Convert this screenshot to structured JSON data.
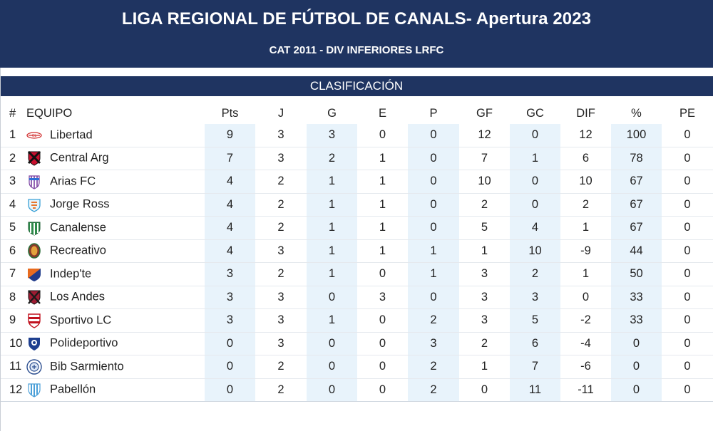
{
  "header": {
    "title": "LIGA REGIONAL DE FÚTBOL DE CANALS- Apertura 2023",
    "subtitle": "CAT 2011 - DIV INFERIORES LRFC"
  },
  "section": {
    "label": "CLASIFICACIÓN"
  },
  "table": {
    "columns": {
      "pos": "#",
      "team": "EQUIPO",
      "pts": "Pts",
      "j": "J",
      "g": "G",
      "e": "E",
      "p": "P",
      "gf": "GF",
      "gc": "GC",
      "dif": "DIF",
      "pct": "%",
      "pe": "PE"
    },
    "rows": [
      {
        "pos": "1",
        "team": "Libertad",
        "crest": "libertad-crest-icon",
        "pts": "9",
        "j": "3",
        "g": "3",
        "e": "0",
        "p": "0",
        "gf": "12",
        "gc": "0",
        "dif": "12",
        "pct": "100",
        "pe": "0"
      },
      {
        "pos": "2",
        "team": "Central Arg",
        "crest": "central-arg-crest-icon",
        "pts": "7",
        "j": "3",
        "g": "2",
        "e": "1",
        "p": "0",
        "gf": "7",
        "gc": "1",
        "dif": "6",
        "pct": "78",
        "pe": "0"
      },
      {
        "pos": "3",
        "team": "Arias FC",
        "crest": "arias-fc-crest-icon",
        "pts": "4",
        "j": "2",
        "g": "1",
        "e": "1",
        "p": "0",
        "gf": "10",
        "gc": "0",
        "dif": "10",
        "pct": "67",
        "pe": "0"
      },
      {
        "pos": "4",
        "team": "Jorge Ross",
        "crest": "jorge-ross-crest-icon",
        "pts": "4",
        "j": "2",
        "g": "1",
        "e": "1",
        "p": "0",
        "gf": "2",
        "gc": "0",
        "dif": "2",
        "pct": "67",
        "pe": "0"
      },
      {
        "pos": "5",
        "team": "Canalense",
        "crest": "canalense-crest-icon",
        "pts": "4",
        "j": "2",
        "g": "1",
        "e": "1",
        "p": "0",
        "gf": "5",
        "gc": "4",
        "dif": "1",
        "pct": "67",
        "pe": "0"
      },
      {
        "pos": "6",
        "team": "Recreativo",
        "crest": "recreativo-crest-icon",
        "pts": "4",
        "j": "3",
        "g": "1",
        "e": "1",
        "p": "1",
        "gf": "1",
        "gc": "10",
        "dif": "-9",
        "pct": "44",
        "pe": "0"
      },
      {
        "pos": "7",
        "team": "Indep'te",
        "crest": "independiente-crest-icon",
        "pts": "3",
        "j": "2",
        "g": "1",
        "e": "0",
        "p": "1",
        "gf": "3",
        "gc": "2",
        "dif": "1",
        "pct": "50",
        "pe": "0"
      },
      {
        "pos": "8",
        "team": "Los Andes",
        "crest": "los-andes-crest-icon",
        "pts": "3",
        "j": "3",
        "g": "0",
        "e": "3",
        "p": "0",
        "gf": "3",
        "gc": "3",
        "dif": "0",
        "pct": "33",
        "pe": "0"
      },
      {
        "pos": "9",
        "team": "Sportivo LC",
        "crest": "sportivo-lc-crest-icon",
        "pts": "3",
        "j": "3",
        "g": "1",
        "e": "0",
        "p": "2",
        "gf": "3",
        "gc": "5",
        "dif": "-2",
        "pct": "33",
        "pe": "0"
      },
      {
        "pos": "10",
        "team": "Polideportivo",
        "crest": "polideportivo-crest-icon",
        "pts": "0",
        "j": "3",
        "g": "0",
        "e": "0",
        "p": "3",
        "gf": "2",
        "gc": "6",
        "dif": "-4",
        "pct": "0",
        "pe": "0"
      },
      {
        "pos": "11",
        "team": "Bib Sarmiento",
        "crest": "bib-sarmiento-crest-icon",
        "pts": "0",
        "j": "2",
        "g": "0",
        "e": "0",
        "p": "2",
        "gf": "1",
        "gc": "7",
        "dif": "-6",
        "pct": "0",
        "pe": "0"
      },
      {
        "pos": "12",
        "team": "Pabellón",
        "crest": "pabellon-crest-icon",
        "pts": "0",
        "j": "2",
        "g": "0",
        "e": "0",
        "p": "2",
        "gf": "0",
        "gc": "11",
        "dif": "-11",
        "pct": "0",
        "pe": "0"
      }
    ]
  },
  "colors": {
    "header_bg": "#1f3461",
    "header_text": "#ffffff",
    "shaded_column": "#e8f3fb",
    "row_divider": "#e5e9ee"
  }
}
